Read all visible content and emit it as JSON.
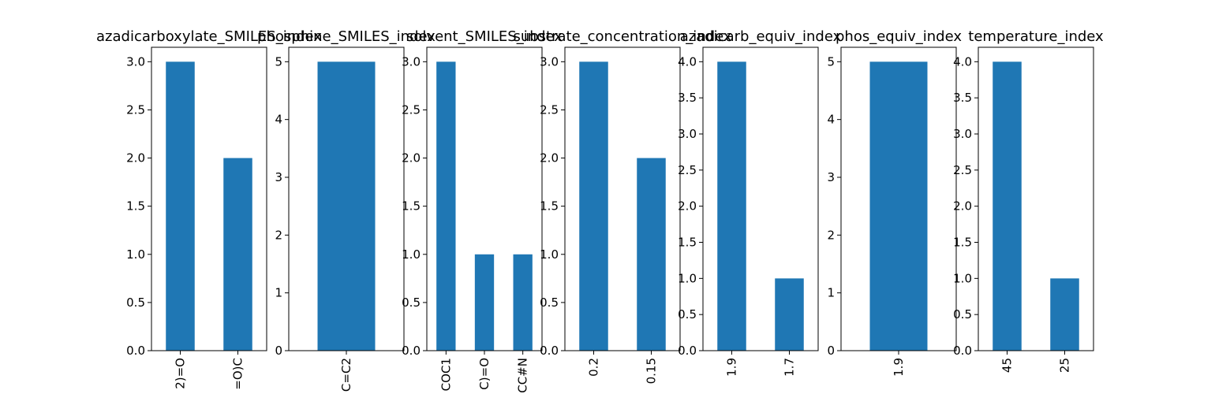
{
  "chart_data": [
    {
      "type": "bar",
      "title": "azadicarboxylate_SMILES_index",
      "categories": [
        "2)=O",
        "=O)C"
      ],
      "values": [
        3,
        2
      ],
      "ylim": [
        0,
        3.15
      ],
      "yticks": [
        "0.0",
        "0.5",
        "1.0",
        "1.5",
        "2.0",
        "2.5",
        "3.0"
      ],
      "ytick_values": [
        0,
        0.5,
        1,
        1.5,
        2,
        2.5,
        3
      ],
      "grid": false
    },
    {
      "type": "bar",
      "title": "phosphine_SMILES_index",
      "categories": [
        "C=C2"
      ],
      "values": [
        5
      ],
      "ylim": [
        0,
        5.25
      ],
      "yticks": [
        "0",
        "1",
        "2",
        "3",
        "4",
        "5"
      ],
      "ytick_values": [
        0,
        1,
        2,
        3,
        4,
        5
      ],
      "grid": false
    },
    {
      "type": "bar",
      "title": "solvent_SMILES_index",
      "categories": [
        "COC1",
        "C)=O",
        "CC#N"
      ],
      "values": [
        3,
        1,
        1
      ],
      "ylim": [
        0,
        3.15
      ],
      "yticks": [
        "0.0",
        "0.5",
        "1.0",
        "1.5",
        "2.0",
        "2.5",
        "3.0"
      ],
      "ytick_values": [
        0,
        0.5,
        1,
        1.5,
        2,
        2.5,
        3
      ],
      "grid": false
    },
    {
      "type": "bar",
      "title": "substrate_concentration_index",
      "categories": [
        "0.2",
        "0.15"
      ],
      "values": [
        3,
        2
      ],
      "ylim": [
        0,
        3.15
      ],
      "yticks": [
        "0.0",
        "0.5",
        "1.0",
        "1.5",
        "2.0",
        "2.5",
        "3.0"
      ],
      "ytick_values": [
        0,
        0.5,
        1,
        1.5,
        2,
        2.5,
        3
      ],
      "grid": false
    },
    {
      "type": "bar",
      "title": "azadicarb_equiv_index",
      "categories": [
        "1.9",
        "1.7"
      ],
      "values": [
        4,
        1
      ],
      "ylim": [
        0,
        4.2
      ],
      "yticks": [
        "0.0",
        "0.5",
        "1.0",
        "1.5",
        "2.0",
        "2.5",
        "3.0",
        "3.5",
        "4.0"
      ],
      "ytick_values": [
        0,
        0.5,
        1,
        1.5,
        2,
        2.5,
        3,
        3.5,
        4
      ],
      "grid": false
    },
    {
      "type": "bar",
      "title": "phos_equiv_index",
      "categories": [
        "1.9"
      ],
      "values": [
        5
      ],
      "ylim": [
        0,
        5.25
      ],
      "yticks": [
        "0",
        "1",
        "2",
        "3",
        "4",
        "5"
      ],
      "ytick_values": [
        0,
        1,
        2,
        3,
        4,
        5
      ],
      "grid": false
    },
    {
      "type": "bar",
      "title": "temperature_index",
      "categories": [
        "45",
        "25"
      ],
      "values": [
        4,
        1
      ],
      "ylim": [
        0,
        4.2
      ],
      "yticks": [
        "0.0",
        "0.5",
        "1.0",
        "1.5",
        "2.0",
        "2.5",
        "3.0",
        "3.5",
        "4.0"
      ],
      "ytick_values": [
        0,
        0.5,
        1,
        1.5,
        2,
        2.5,
        3,
        3.5,
        4
      ],
      "grid": false
    }
  ],
  "colors": {
    "bar": "#1f77b4",
    "axis": "#000000",
    "background": "#ffffff"
  }
}
